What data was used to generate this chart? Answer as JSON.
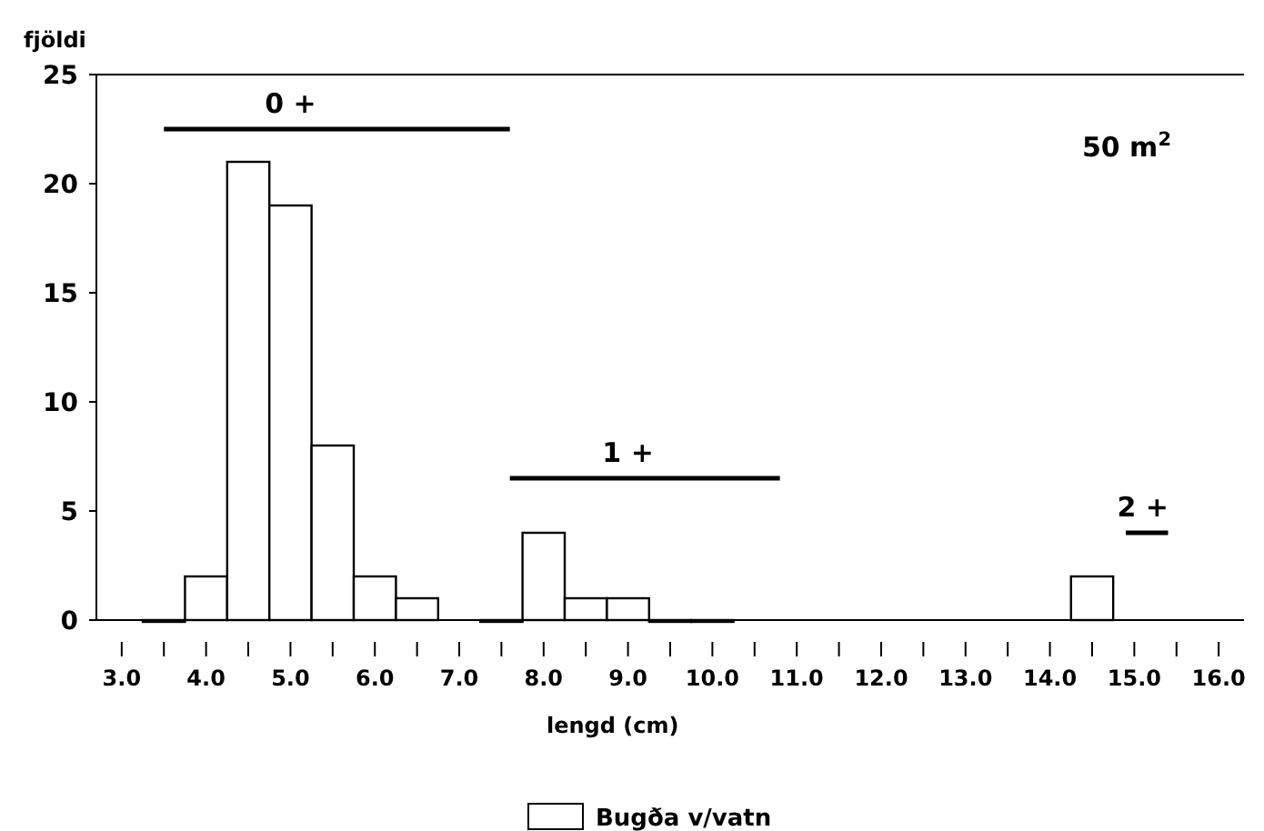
{
  "chart_data": {
    "type": "histogram",
    "ylabel": "fjöldi",
    "xlabel": "lengd (cm)",
    "bins": [
      3.25,
      3.75,
      4.25,
      4.75,
      5.25,
      5.75,
      6.25,
      6.75,
      7.25,
      7.75,
      8.25,
      8.75,
      9.25,
      9.75,
      10.25,
      10.75,
      11.25,
      11.75,
      12.25,
      12.75,
      13.25,
      13.75,
      14.25,
      14.75
    ],
    "series": [
      {
        "name": "Bugða v/vatn",
        "color": "#ffffff",
        "values": [
          0,
          2,
          21,
          19,
          8,
          2,
          1,
          null,
          0,
          4,
          1,
          1,
          0,
          0,
          null,
          null,
          null,
          null,
          null,
          null,
          null,
          null,
          2
        ]
      },
      {
        "type": "line",
        "color": "#000000",
        "x": [
          3.5,
          7.6
        ],
        "values": [
          22.5,
          22.5
        ]
      },
      {
        "type": "line",
        "color": "#000000",
        "x": [
          7.6,
          10.8
        ],
        "values": [
          6.5,
          6.5
        ]
      },
      {
        "type": "line",
        "color": "#000000",
        "x": [
          14.9,
          15.4
        ],
        "values": [
          4,
          4
        ]
      }
    ],
    "annotations": [
      {
        "text": "0 +",
        "x": 5.0,
        "y": 22.5
      },
      {
        "text": "1 +",
        "x": 9.0,
        "y": 6.5
      },
      {
        "text": "2 +",
        "x": 15.1,
        "y": 4
      },
      "50 m$^{2}$"
    ],
    "xlim": [
      2.7,
      16.3
    ],
    "xticks": [
      {
        "value": 3,
        "label": "3.0"
      },
      {
        "value": 3.5,
        "label": null
      },
      {
        "value": 4,
        "label": "4.0"
      },
      {
        "value": 4.5,
        "label": null
      },
      {
        "value": 5,
        "label": "5.0"
      },
      {
        "value": 5.5,
        "label": null
      },
      {
        "value": 6,
        "label": "6.0"
      },
      {
        "value": 6.5,
        "label": null
      },
      {
        "value": 7,
        "label": "7.0"
      },
      {
        "value": 7.5,
        "label": null
      },
      {
        "value": 8,
        "label": "8.0"
      },
      {
        "value": 8.5,
        "label": null
      },
      {
        "value": 9,
        "label": "9.0"
      },
      {
        "value": 9.5,
        "label": null
      },
      {
        "value": 10,
        "label": "10.0"
      },
      {
        "value": 10.5,
        "label": null
      },
      {
        "value": 11,
        "label": "11.0"
      },
      {
        "value": 11.5,
        "label": null
      },
      {
        "value": 12,
        "label": "12.0"
      },
      {
        "value": 12.5,
        "label": null
      },
      {
        "value": 13,
        "label": "13.0"
      },
      {
        "value": 13.5,
        "label": null
      },
      {
        "value": 14,
        "label": "14.0"
      },
      {
        "value": 14.5,
        "label": null
      },
      {
        "value": 15,
        "label": "15.0"
      },
      {
        "value": 15.5,
        "label": null
      },
      {
        "value": 16,
        "label": "16.0"
      }
    ],
    "ylim": [
      0,
      25
    ],
    "yticks": [
      0,
      5,
      10,
      15,
      20,
      25
    ],
    "legend": "bottom",
    "grid": false
  }
}
